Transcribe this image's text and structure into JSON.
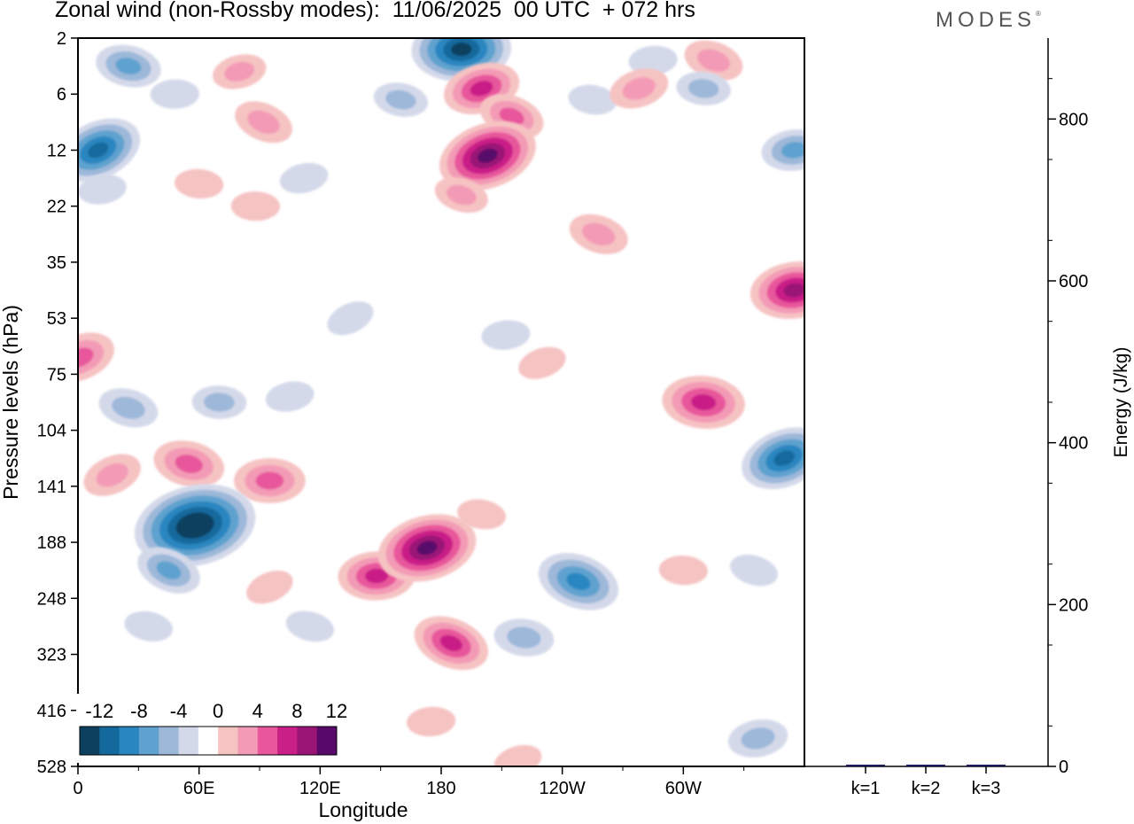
{
  "header": {
    "title": "Zonal wind (non-Rossby modes):  11/06/2025  00 UTC  + 072 hrs",
    "brand": "MODES"
  },
  "chart_data": [
    {
      "type": "heatmap",
      "title": "Zonal wind (non-Rossby modes):  11/06/2025  00 UTC  + 072 hrs",
      "xlabel": "Longitude",
      "ylabel": "Pressure levels (hPa)",
      "x_ticks": [
        "0",
        "60E",
        "120E",
        "180",
        "120W",
        "60W"
      ],
      "x_tick_values": [
        0,
        60,
        120,
        180,
        240,
        300
      ],
      "xlim": [
        0,
        360
      ],
      "y_ticks": [
        "2",
        "6",
        "12",
        "22",
        "35",
        "53",
        "75",
        "104",
        "141",
        "188",
        "248",
        "323",
        "416",
        "528"
      ],
      "y_scale": "pressure levels (top = 2 hPa, bottom = 528 hPa)",
      "colorbar": {
        "tick_labels": [
          "-12",
          "-8",
          "-4",
          "0",
          "4",
          "8",
          "12"
        ],
        "levels": [
          -14,
          -12,
          -10,
          -8,
          -6,
          -4,
          -2,
          2,
          4,
          6,
          8,
          10,
          12,
          14
        ],
        "colors": [
          "#0d3f5e",
          "#13699c",
          "#2a86c0",
          "#5fa2cf",
          "#9db8d9",
          "#d4d9ea",
          "#ffffff",
          "#f6c3c3",
          "#f39bb6",
          "#e8569b",
          "#c91f87",
          "#9a1476",
          "#58086b"
        ],
        "placement": "bottom-left"
      },
      "features": [
        {
          "lon": 10,
          "lev": 2,
          "value": -10
        },
        {
          "lon": 25,
          "lev": 0.5,
          "value": -6
        },
        {
          "lon": 48,
          "lev": 1,
          "value": -3
        },
        {
          "lon": 80,
          "lev": 0.6,
          "value": 4
        },
        {
          "lon": 92,
          "lev": 1.5,
          "value": 5
        },
        {
          "lon": 160,
          "lev": 1.1,
          "value": -4
        },
        {
          "lon": 190,
          "lev": 0.2,
          "value": -12
        },
        {
          "lon": 200,
          "lev": 0.9,
          "value": 8
        },
        {
          "lon": 215,
          "lev": 1.4,
          "value": 6
        },
        {
          "lon": 255,
          "lev": 1.1,
          "value": -3
        },
        {
          "lon": 285,
          "lev": 0.4,
          "value": -3
        },
        {
          "lon": 278,
          "lev": 0.9,
          "value": 5
        },
        {
          "lon": 315,
          "lev": 0.4,
          "value": 5
        },
        {
          "lon": 310,
          "lev": 0.9,
          "value": -4
        },
        {
          "lon": 355,
          "lev": 2,
          "value": -6
        },
        {
          "lon": 203,
          "lev": 2.1,
          "value": 12
        },
        {
          "lon": 190,
          "lev": 2.8,
          "value": 4
        },
        {
          "lon": 60,
          "lev": 2.6,
          "value": 3
        },
        {
          "lon": 12,
          "lev": 2.7,
          "value": -3
        },
        {
          "lon": 1,
          "lev": 5.7,
          "value": 7
        },
        {
          "lon": 25,
          "lev": 6.6,
          "value": -5
        },
        {
          "lon": 70,
          "lev": 6.5,
          "value": -4
        },
        {
          "lon": 105,
          "lev": 6.4,
          "value": -3
        },
        {
          "lon": 17,
          "lev": 7.8,
          "value": 5
        },
        {
          "lon": 55,
          "lev": 7.6,
          "value": 7
        },
        {
          "lon": 95,
          "lev": 7.9,
          "value": 7
        },
        {
          "lon": 58,
          "lev": 8.7,
          "value": -16
        },
        {
          "lon": 45,
          "lev": 9.5,
          "value": -6
        },
        {
          "lon": 35,
          "lev": 10.5,
          "value": -3
        },
        {
          "lon": 148,
          "lev": 9.6,
          "value": 8
        },
        {
          "lon": 173,
          "lev": 9.1,
          "value": 12
        },
        {
          "lon": 185,
          "lev": 10.8,
          "value": 8
        },
        {
          "lon": 200,
          "lev": 8.5,
          "value": 3
        },
        {
          "lon": 175,
          "lev": 12.2,
          "value": 3
        },
        {
          "lon": 218,
          "lev": 12.9,
          "value": 3
        },
        {
          "lon": 248,
          "lev": 9.7,
          "value": -9
        },
        {
          "lon": 221,
          "lev": 10.7,
          "value": -5
        },
        {
          "lon": 212,
          "lev": 5.3,
          "value": -3
        },
        {
          "lon": 230,
          "lev": 5.8,
          "value": 3
        },
        {
          "lon": 258,
          "lev": 3.5,
          "value": 5
        },
        {
          "lon": 310,
          "lev": 6.5,
          "value": 9
        },
        {
          "lon": 355,
          "lev": 4.5,
          "value": 10
        },
        {
          "lon": 350,
          "lev": 7.5,
          "value": -10
        },
        {
          "lon": 335,
          "lev": 9.5,
          "value": -3
        },
        {
          "lon": 300,
          "lev": 9.5,
          "value": 3
        },
        {
          "lon": 337,
          "lev": 12.5,
          "value": -5
        },
        {
          "lon": 95,
          "lev": 9.8,
          "value": 3
        },
        {
          "lon": 115,
          "lev": 10.5,
          "value": -3
        },
        {
          "lon": 88,
          "lev": 3,
          "value": 3
        },
        {
          "lon": 112,
          "lev": 2.5,
          "value": -3
        },
        {
          "lon": 135,
          "lev": 5,
          "value": -3
        }
      ]
    },
    {
      "type": "bar",
      "categories": [
        "k=1",
        "k=2",
        "k=3"
      ],
      "values": [
        2,
        1.5,
        1
      ],
      "ylabel": "Energy (J/kg)",
      "ylim": [
        0,
        900
      ],
      "y_ticks": [
        "0",
        "200",
        "400",
        "600",
        "800"
      ],
      "y_tick_values": [
        0,
        200,
        400,
        600,
        800
      ],
      "y_axis_side": "right",
      "bar_color": "#1a1a5e"
    }
  ]
}
